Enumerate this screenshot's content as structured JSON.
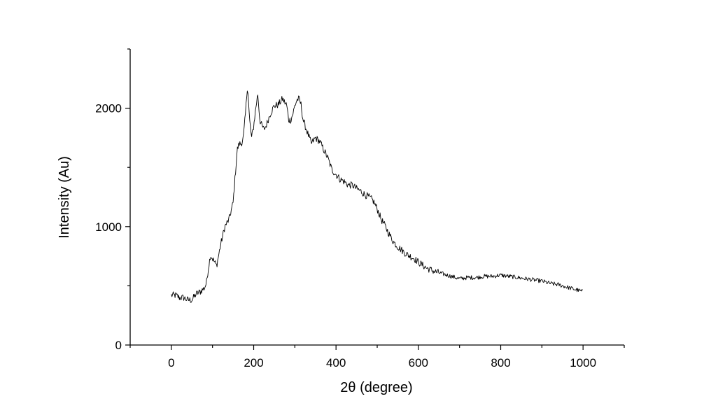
{
  "chart_data": {
    "type": "line",
    "title": "",
    "xlabel": "2θ (degree)",
    "ylabel": "Intensity (Au)",
    "xlim": [
      -100,
      1100
    ],
    "ylim": [
      0,
      2500
    ],
    "xticks": [
      0,
      200,
      400,
      600,
      800,
      1000
    ],
    "xtick_labels": [
      "0",
      "200",
      "400",
      "600",
      "800",
      "1000"
    ],
    "yticks": [
      0,
      1000,
      2000
    ],
    "ytick_labels": [
      "0",
      "1000",
      "2000"
    ],
    "grid": false,
    "legend": "none",
    "line_color": "#000000",
    "series": [
      {
        "x": [
          0,
          10,
          20,
          30,
          40,
          50,
          60,
          70,
          80,
          85,
          90,
          95,
          100,
          110,
          120,
          130,
          140,
          150,
          160,
          165,
          170,
          175,
          180,
          185,
          190,
          195,
          200,
          205,
          210,
          215,
          220,
          225,
          230,
          240,
          250,
          260,
          270,
          275,
          280,
          285,
          290,
          295,
          300,
          305,
          310,
          315,
          320,
          325,
          330,
          340,
          350,
          360,
          370,
          380,
          390,
          400,
          410,
          420,
          430,
          440,
          450,
          460,
          470,
          480,
          490,
          500,
          510,
          520,
          530,
          540,
          550,
          560,
          570,
          580,
          590,
          600,
          620,
          640,
          660,
          680,
          700,
          720,
          740,
          760,
          780,
          800,
          820,
          840,
          860,
          880,
          900,
          920,
          940,
          960,
          980,
          1000
        ],
        "y": [
          420,
          420,
          400,
          400,
          380,
          380,
          430,
          450,
          480,
          520,
          650,
          760,
          730,
          670,
          850,
          1000,
          1060,
          1200,
          1650,
          1700,
          1700,
          1750,
          1950,
          2200,
          1900,
          1750,
          1850,
          2000,
          2120,
          1900,
          1850,
          1820,
          1850,
          1950,
          2020,
          2030,
          2080,
          2050,
          2030,
          1900,
          1900,
          1950,
          2020,
          2070,
          2080,
          2030,
          1900,
          1850,
          1800,
          1700,
          1750,
          1720,
          1650,
          1580,
          1480,
          1440,
          1400,
          1380,
          1350,
          1350,
          1320,
          1300,
          1270,
          1250,
          1220,
          1150,
          1060,
          1000,
          930,
          870,
          830,
          800,
          770,
          750,
          730,
          700,
          650,
          620,
          600,
          580,
          560,
          570,
          570,
          580,
          580,
          590,
          580,
          570,
          560,
          550,
          540,
          520,
          510,
          490,
          470,
          450
        ]
      }
    ]
  }
}
